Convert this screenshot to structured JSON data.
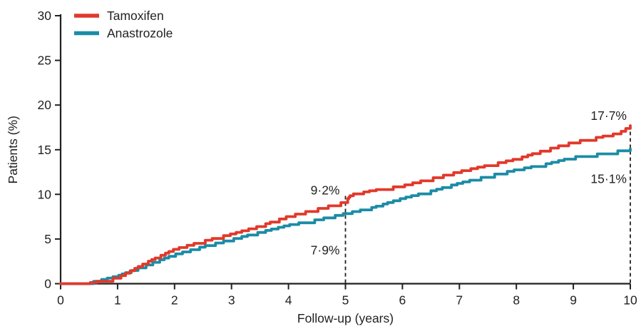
{
  "page": {
    "background": "#ffffff",
    "text_color": "#231f20"
  },
  "chart_data": {
    "type": "line",
    "subtype": "kaplan-meier-step",
    "title": "",
    "xlabel": "Follow-up (years)",
    "ylabel": "Patients (%)",
    "xlim": [
      0,
      10
    ],
    "ylim": [
      0,
      30
    ],
    "xticks": [
      "0",
      "1",
      "2",
      "3",
      "4",
      "5",
      "6",
      "7",
      "8",
      "9",
      "10"
    ],
    "yticks": [
      "0",
      "5",
      "10",
      "15",
      "20",
      "25",
      "30"
    ],
    "grid": false,
    "legend_position": "top-left",
    "axis_color": "#231f20",
    "series": [
      {
        "name": "Tamoxifen",
        "color": "#e1392b",
        "x": [
          0,
          0.5,
          1,
          1.5,
          2,
          2.5,
          3,
          3.5,
          4,
          4.5,
          5,
          5.1,
          5.5,
          6,
          6.5,
          7,
          7.5,
          8,
          8.5,
          9,
          9.5,
          9.8,
          10
        ],
        "values": [
          0,
          0.1,
          0.7,
          2.4,
          3.9,
          4.8,
          5.6,
          6.5,
          7.6,
          8.4,
          9.2,
          10.0,
          10.5,
          11.0,
          11.8,
          12.6,
          13.3,
          14.0,
          15.0,
          15.9,
          16.5,
          16.9,
          17.7
        ]
      },
      {
        "name": "Anastrozole",
        "color": "#1b8ca6",
        "x": [
          0,
          0.5,
          1,
          1.5,
          2,
          2.5,
          3,
          3.5,
          4,
          4.5,
          5,
          5.5,
          6,
          6.5,
          7,
          7.5,
          8,
          8.5,
          9,
          9.5,
          10
        ],
        "values": [
          0,
          0.15,
          0.9,
          2.1,
          3.3,
          4.2,
          5.0,
          5.8,
          6.6,
          7.2,
          7.9,
          8.6,
          9.6,
          10.4,
          11.3,
          12.1,
          12.8,
          13.4,
          14.2,
          14.6,
          15.1
        ]
      }
    ],
    "reference_lines": [
      {
        "x": 5,
        "style": "dashed"
      },
      {
        "x": 10,
        "style": "dashed"
      }
    ],
    "annotations": [
      {
        "text": "9·2%",
        "x": 5,
        "y": 9.2,
        "series": "Tamoxifen"
      },
      {
        "text": "7·9%",
        "x": 5,
        "y": 7.9,
        "series": "Anastrozole"
      },
      {
        "text": "17·7%",
        "x": 10,
        "y": 17.7,
        "series": "Tamoxifen"
      },
      {
        "text": "15·1%",
        "x": 10,
        "y": 15.1,
        "series": "Anastrozole"
      }
    ]
  }
}
